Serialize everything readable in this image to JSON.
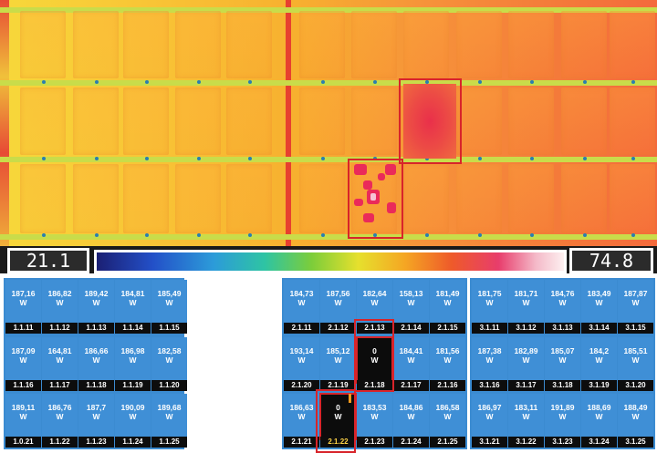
{
  "thermal": {
    "min_temp": "21.1",
    "max_temp": "74.8"
  },
  "grid": {
    "unit": "W",
    "block1": [
      [
        {
          "id": "1.1.11",
          "v": "187,16"
        },
        {
          "id": "1.1.12",
          "v": "186,82"
        },
        {
          "id": "1.1.13",
          "v": "189,42"
        },
        {
          "id": "1.1.14",
          "v": "184,81"
        },
        {
          "id": "1.1.15",
          "v": "185,49"
        }
      ],
      [
        {
          "id": "1.1.16",
          "v": "187,09"
        },
        {
          "id": "1.1.17",
          "v": "164,81"
        },
        {
          "id": "1.1.18",
          "v": "186,66"
        },
        {
          "id": "1.1.19",
          "v": "186,98"
        },
        {
          "id": "1.1.20",
          "v": "182,58"
        }
      ],
      [
        {
          "id": "1.0.21",
          "v": "189,11"
        },
        {
          "id": "1.1.22",
          "v": "186,76"
        },
        {
          "id": "1.1.23",
          "v": "187,7"
        },
        {
          "id": "1.1.24",
          "v": "190,09"
        },
        {
          "id": "1.1.25",
          "v": "189,68"
        }
      ]
    ],
    "block2": [
      [
        {
          "id": "2.1.11",
          "v": "184,73"
        },
        {
          "id": "2.1.12",
          "v": "187,56"
        },
        {
          "id": "2.1.13",
          "v": "182,64"
        },
        {
          "id": "2.1.14",
          "v": "158,13"
        },
        {
          "id": "2.1.15",
          "v": "181,49"
        }
      ],
      [
        {
          "id": "2.1.20",
          "v": "193,14"
        },
        {
          "id": "2.1.19",
          "v": "185,12"
        },
        {
          "id": "2.1.18",
          "v": "0"
        },
        {
          "id": "2.1.17",
          "v": "184,41"
        },
        {
          "id": "2.1.16",
          "v": "181,56"
        }
      ],
      [
        {
          "id": "2.1.21",
          "v": "186,63"
        },
        {
          "id": "2.1.22",
          "v": "0"
        },
        {
          "id": "2.1.23",
          "v": "183,53"
        },
        {
          "id": "2.1.24",
          "v": "184,86"
        },
        {
          "id": "2.1.25",
          "v": "186,58"
        }
      ]
    ],
    "block3": [
      [
        {
          "id": "3.1.11",
          "v": "181,75"
        },
        {
          "id": "3.1.12",
          "v": "181,71"
        },
        {
          "id": "3.1.13",
          "v": "184,76"
        },
        {
          "id": "3.1.14",
          "v": "183,49"
        },
        {
          "id": "3.1.15",
          "v": "187,87"
        }
      ],
      [
        {
          "id": "3.1.16",
          "v": "187,38"
        },
        {
          "id": "3.1.17",
          "v": "182,89"
        },
        {
          "id": "3.1.18",
          "v": "185,07"
        },
        {
          "id": "3.1.19",
          "v": "184,2"
        },
        {
          "id": "3.1.20",
          "v": "185,51"
        }
      ],
      [
        {
          "id": "3.1.21",
          "v": "186,97"
        },
        {
          "id": "3.1.22",
          "v": "183,11"
        },
        {
          "id": "3.1.23",
          "v": "191,89"
        },
        {
          "id": "3.1.24",
          "v": "188,69"
        },
        {
          "id": "3.1.25",
          "v": "188,49"
        }
      ]
    ],
    "faulty": [
      "2.1.18",
      "2.1.22"
    ],
    "colors": {
      "panel": "#3f8fd6",
      "dead": "#0c0c0c",
      "highlight": "#d8242a",
      "label_bg": "#0d0d0d"
    }
  }
}
